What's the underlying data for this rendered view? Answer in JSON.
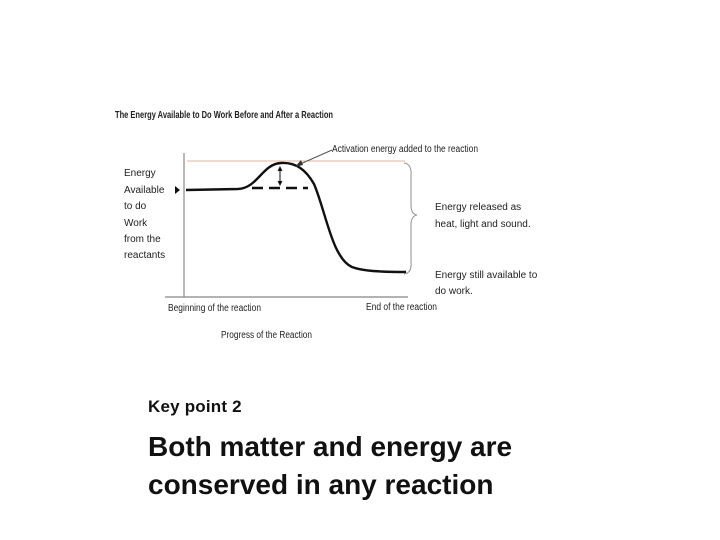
{
  "diagram": {
    "title": "The Energy Available to Do Work Before and After a Reaction",
    "y_axis_label_lines": [
      "Energy",
      "Available",
      "to do",
      "Work",
      "from the",
      "reactants"
    ],
    "x_axis_label": "Progress of the Reaction",
    "x_tick_start": "Beginning of the reaction",
    "x_tick_end": "End of the reaction",
    "annotation_activation": "Activation energy added to the reaction",
    "annotation_released_lines": [
      "Energy released as",
      "heat, light and sound."
    ],
    "annotation_remaining_lines": [
      "Energy still available to",
      "do work."
    ],
    "colors": {
      "curve": "#111111",
      "activation_line": "#e8b3a3",
      "brace": "#999999"
    }
  },
  "key_point": {
    "label": "Key point 2",
    "headline_lines": [
      "Both matter and energy are",
      "conserved in any reaction"
    ]
  }
}
